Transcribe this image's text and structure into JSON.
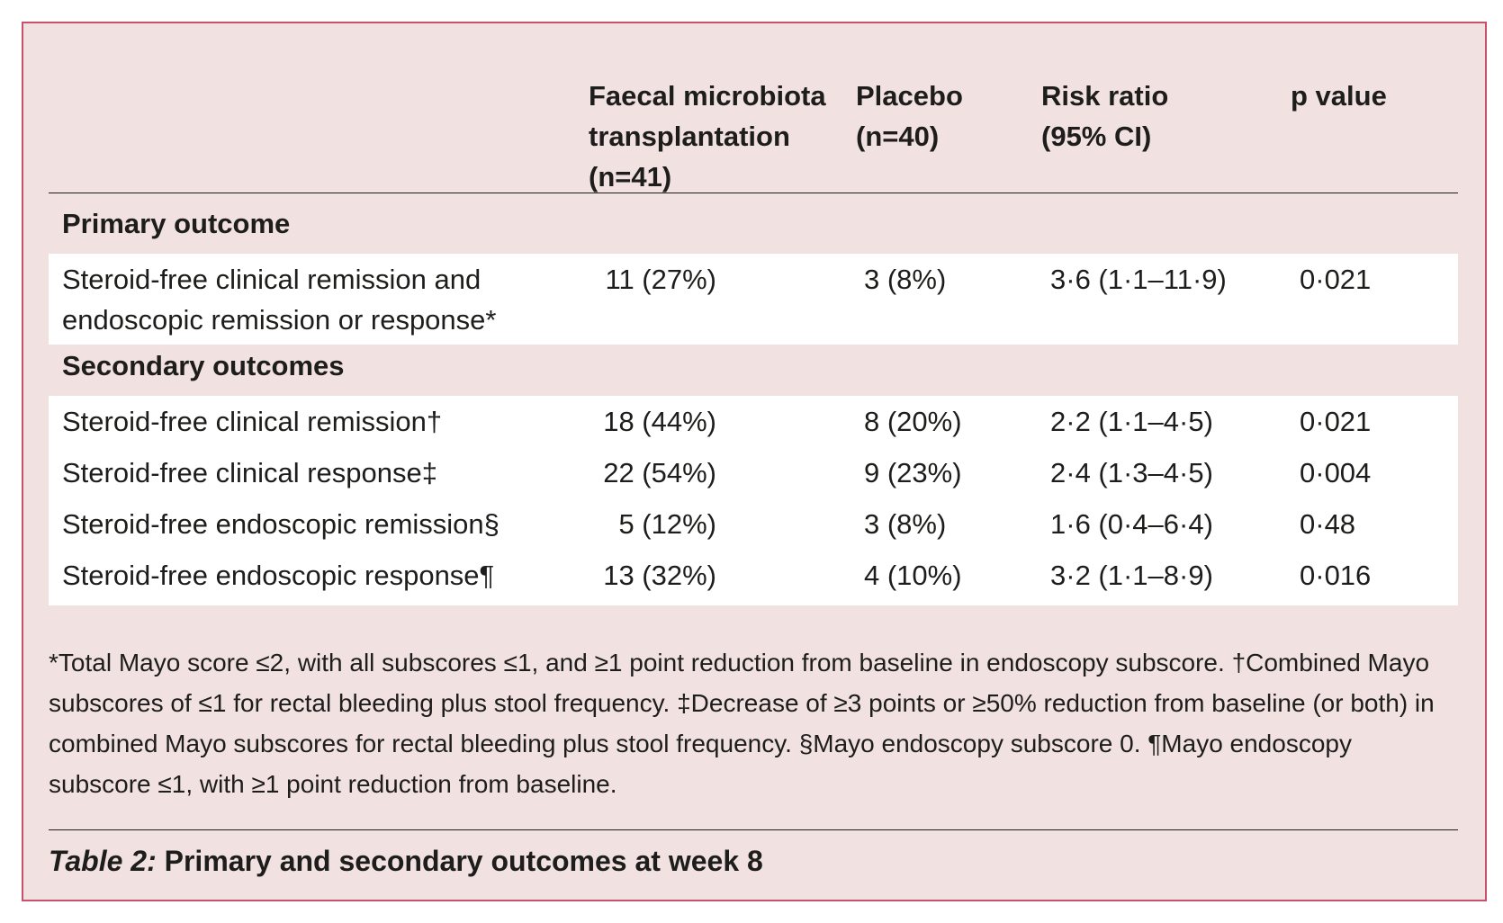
{
  "table": {
    "headers": [
      "Faecal microbiota\ntransplantation\n(n=41)",
      "Placebo\n(n=40)",
      "Risk ratio\n(95% CI)",
      "p value"
    ],
    "primary_section": "Primary outcome",
    "primary_row": {
      "label": "Steroid-free clinical remission and\nendoscopic remission or response*",
      "fmt": "11 (27%)",
      "placebo": "3 (8%)",
      "rr": "3·6 (1·1–11·9)",
      "p": "0·021"
    },
    "secondary_section": "Secondary outcomes",
    "secondary_rows": [
      {
        "label": "Steroid-free clinical remission†",
        "fmt": "18 (44%)",
        "placebo": "8 (20%)",
        "rr": "2·2 (1·1–4·5)",
        "p": "0·021"
      },
      {
        "label": "Steroid-free clinical response‡",
        "fmt": "22 (54%)",
        "placebo": "9 (23%)",
        "rr": "2·4 (1·3–4·5)",
        "p": "0·004"
      },
      {
        "label": "Steroid-free endoscopic remission§",
        "fmt": "5 (12%)",
        "placebo": "3 (8%)",
        "rr": "1·6 (0·4–6·4)",
        "p": "0·48"
      },
      {
        "label": "Steroid-free endoscopic response¶",
        "fmt": "13 (32%)",
        "placebo": "4 (10%)",
        "rr": "3·2 (1·1–8·9)",
        "p": "0·016"
      }
    ]
  },
  "footnote": "*Total Mayo score ≤2, with all subscores ≤1, and ≥1 point reduction from baseline in endoscopy subscore. †Combined Mayo subscores of ≤1 for rectal bleeding plus stool frequency. ‡Decrease of ≥3 points or ≥50% reduction from baseline (or both) in combined Mayo subscores for rectal bleeding plus stool frequency. §Mayo endoscopy subscore 0. ¶Mayo endoscopy subscore ≤1, with ≥1 point reduction from baseline.",
  "caption": {
    "label": "Table 2:",
    "text": " Primary and secondary outcomes at week 8"
  }
}
